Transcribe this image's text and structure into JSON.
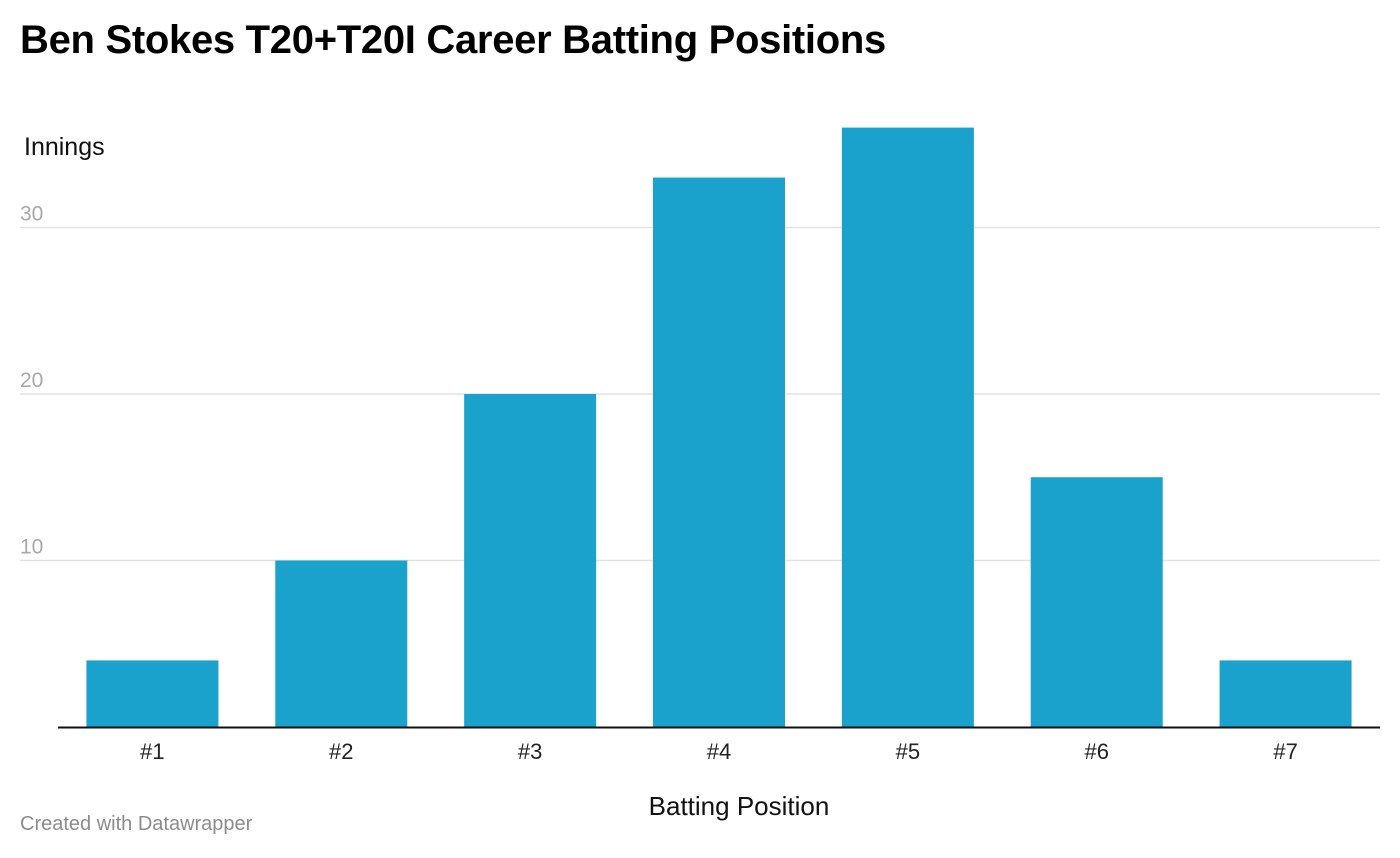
{
  "chart_data": {
    "type": "bar",
    "title": "Ben Stokes T20+T20I Career Batting Positions",
    "ylabel": "Innings",
    "xlabel": "Batting Position",
    "categories": [
      "#1",
      "#2",
      "#3",
      "#4",
      "#5",
      "#6",
      "#7"
    ],
    "values": [
      4,
      10,
      20,
      33,
      36,
      15,
      4
    ],
    "ylim": [
      0,
      36
    ],
    "yticks": [
      "10",
      "20",
      "30"
    ],
    "grid": true,
    "legend": "none",
    "bar_color": "#1aa1cc"
  },
  "footer": {
    "credit": "Created with Datawrapper"
  }
}
